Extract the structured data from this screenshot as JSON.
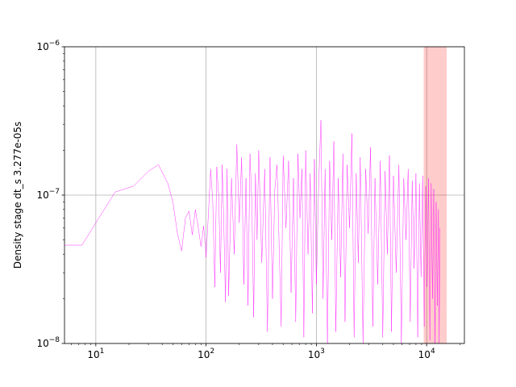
{
  "chart_data": {
    "type": "line",
    "title": "",
    "xlabel": "",
    "ylabel": "Density stage dt_s 3.277e-05s",
    "xscale": "log",
    "yscale": "log",
    "xlim": [
      5.2,
      22000
    ],
    "ylim": [
      1e-08,
      1e-06
    ],
    "grid": true,
    "colors": {
      "series": "#ff00ff",
      "band": "#ff0000",
      "grid": "#b0b0b0"
    },
    "x_ticks": [
      {
        "value": 10,
        "base": "10",
        "exp": "1"
      },
      {
        "value": 100,
        "base": "10",
        "exp": "2"
      },
      {
        "value": 1000,
        "base": "10",
        "exp": "3"
      },
      {
        "value": 10000,
        "base": "10",
        "exp": "4"
      }
    ],
    "y_ticks": [
      {
        "value": 1e-08,
        "base": "10",
        "exp": "−8"
      },
      {
        "value": 1e-07,
        "base": "10",
        "exp": "−7"
      },
      {
        "value": 1e-06,
        "base": "10",
        "exp": "−6"
      }
    ],
    "highlight_band": {
      "x0": 9400,
      "x1": 15200,
      "alpha": 0.2
    },
    "series": [
      {
        "x": [
          5.2,
          7.5,
          10,
          15,
          22,
          30,
          37,
          45,
          50,
          55,
          60,
          65,
          70,
          75,
          80,
          85,
          90,
          95,
          100,
          105,
          110,
          115,
          120,
          125,
          130,
          135,
          140,
          145,
          150,
          155,
          160,
          170,
          180,
          190,
          200,
          210,
          220,
          230,
          240,
          250,
          260,
          270,
          280,
          290,
          300,
          320,
          340,
          360,
          380,
          400,
          420,
          440,
          460,
          480,
          500,
          530,
          560,
          590,
          620,
          650,
          680,
          710,
          740,
          770,
          800,
          840,
          880,
          920,
          960,
          1000,
          1050,
          1100,
          1150,
          1200,
          1260,
          1320,
          1380,
          1440,
          1500,
          1580,
          1660,
          1740,
          1820,
          1900,
          2000,
          2100,
          2200,
          2300,
          2400,
          2500,
          2650,
          2800,
          2950,
          3100,
          3250,
          3400,
          3600,
          3800,
          4000,
          4200,
          4400,
          4600,
          4800,
          5000,
          5300,
          5600,
          5900,
          6200,
          6500,
          6800,
          7100,
          7400,
          7700,
          8000,
          8300,
          8600,
          8900,
          9200,
          9500,
          9800,
          10100,
          10400,
          10700,
          11000,
          11300,
          11600,
          11900,
          12200,
          12500,
          12800,
          13000,
          13200
        ],
        "y": [
          4.6e-08,
          4.6e-08,
          6.5e-08,
          1.05e-07,
          1.15e-07,
          1.45e-07,
          1.6e-07,
          1.2e-07,
          9e-08,
          5.5e-08,
          4.2e-08,
          7e-08,
          7.8e-08,
          5.4e-08,
          8e-08,
          6e-08,
          4.5e-08,
          6.2e-08,
          3.8e-08,
          7.5e-08,
          1.5e-07,
          9e-08,
          2.4e-08,
          1.55e-07,
          1e-07,
          3e-08,
          1.6e-07,
          6e-08,
          1.9e-08,
          1.5e-07,
          2.1e-08,
          1.3e-07,
          4e-08,
          2.2e-07,
          6.5e-08,
          1.8e-07,
          2.5e-08,
          1.3e-07,
          1.8e-08,
          1.9e-07,
          9e-08,
          1.5e-08,
          1.4e-07,
          5e-08,
          2e-07,
          3.5e-08,
          1.5e-07,
          1.2e-08,
          1.8e-07,
          2e-08,
          1.1e-07,
          1.6e-07,
          4.5e-08,
          1.3e-08,
          1.85e-07,
          6e-08,
          1.7e-07,
          2.2e-08,
          1.3e-07,
          1.4e-08,
          1.9e-07,
          7e-08,
          1.5e-07,
          1.1e-08,
          2e-07,
          4e-08,
          1.4e-07,
          1.6e-08,
          1.75e-07,
          2.5e-08,
          1.2e-07,
          3.2e-07,
          2e-08,
          1.5e-07,
          1e-08,
          1.7e-07,
          5e-08,
          2.3e-07,
          1.2e-08,
          1.3e-07,
          2.8e-08,
          1.9e-07,
          1.4e-08,
          1.6e-07,
          6e-08,
          2.6e-07,
          1.1e-08,
          1.4e-07,
          3.5e-08,
          1.8e-07,
          1e-08,
          1.5e-07,
          5.5e-08,
          2.1e-07,
          1.3e-08,
          1.3e-07,
          2.5e-08,
          1.7e-07,
          1.1e-08,
          1.45e-07,
          4e-08,
          1.85e-07,
          1.2e-08,
          1.35e-07,
          3e-08,
          1.6e-07,
          1e-08,
          1.3e-07,
          5e-08,
          1.5e-07,
          1.4e-08,
          1.25e-07,
          3.2e-08,
          1.4e-07,
          1.1e-08,
          1.2e-07,
          2.8e-08,
          1.35e-07,
          1.3e-08,
          1.15e-07,
          2.4e-08,
          1.3e-07,
          1.05e-08,
          1.2e-07,
          2e-08,
          1.1e-07,
          1e-08,
          9e-08,
          1.8e-08,
          8e-08,
          1e-08,
          6e-08
        ]
      }
    ]
  }
}
